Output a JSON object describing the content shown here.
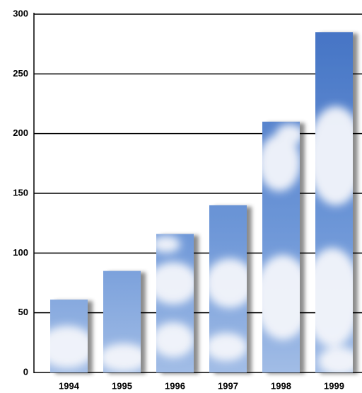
{
  "chart_data": {
    "type": "bar",
    "categories": [
      "1994",
      "1995",
      "1996",
      "1997",
      "1998",
      "1999"
    ],
    "values": [
      61,
      85,
      116,
      140,
      210,
      285
    ],
    "color": "#4a78c8",
    "ylim": [
      0,
      300
    ],
    "yticks": [
      0,
      50,
      100,
      150,
      200,
      250,
      300
    ],
    "grid": true
  }
}
